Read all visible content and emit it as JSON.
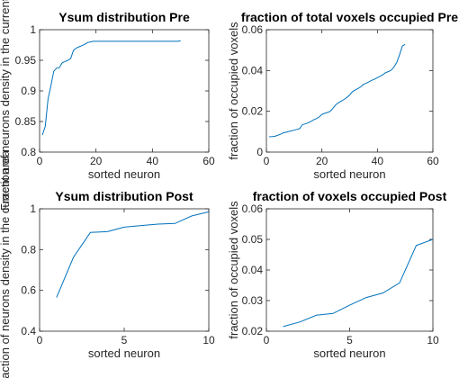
{
  "colors": {
    "line": "#0072bd",
    "axis": "#262626",
    "background": "#ffffff"
  },
  "chart_data": [
    {
      "type": "line",
      "title": "Ysum distribution Pre",
      "xlabel": "sorted neuron",
      "ylabel": "Fraction of neurons density in the current area",
      "xlim": [
        0,
        60
      ],
      "ylim": [
        0.8,
        1.0
      ],
      "xticks": [
        0,
        20,
        40,
        60
      ],
      "yticks": [
        0.8,
        0.85,
        0.9,
        0.95,
        1.0
      ],
      "xtick_labels": [
        "0",
        "20",
        "40",
        "60"
      ],
      "ytick_labels": [
        "0.8",
        "0.85",
        "0.9",
        "0.95",
        "1"
      ],
      "grid": false,
      "series": [
        {
          "x": [
            1,
            2,
            3,
            4,
            5,
            6,
            7,
            8,
            9,
            10,
            11,
            12,
            13,
            14,
            15,
            16,
            17,
            18,
            19,
            20,
            21,
            22,
            23,
            24,
            25,
            26,
            27,
            28,
            29,
            30,
            31,
            32,
            33,
            34,
            35,
            36,
            37,
            38,
            39,
            40,
            41,
            42,
            43,
            44,
            45,
            46,
            47,
            48,
            49,
            50
          ],
          "values": [
            0.828,
            0.842,
            0.887,
            0.908,
            0.932,
            0.937,
            0.938,
            0.946,
            0.948,
            0.95,
            0.953,
            0.966,
            0.97,
            0.972,
            0.974,
            0.976,
            0.979,
            0.98,
            0.981,
            0.981,
            0.981,
            0.981,
            0.981,
            0.981,
            0.981,
            0.981,
            0.981,
            0.981,
            0.981,
            0.981,
            0.981,
            0.981,
            0.981,
            0.981,
            0.981,
            0.981,
            0.981,
            0.981,
            0.981,
            0.981,
            0.981,
            0.981,
            0.981,
            0.981,
            0.981,
            0.981,
            0.981,
            0.981,
            0.981,
            0.982
          ]
        }
      ]
    },
    {
      "type": "line",
      "title": "fraction of total voxels occupied Pre",
      "xlabel": "sorted neuron",
      "ylabel": "fraction of occupied voxels",
      "xlim": [
        0,
        60
      ],
      "ylim": [
        0,
        0.06
      ],
      "xticks": [
        0,
        20,
        40,
        60
      ],
      "yticks": [
        0,
        0.02,
        0.04,
        0.06
      ],
      "xtick_labels": [
        "0",
        "20",
        "40",
        "60"
      ],
      "ytick_labels": [
        "0",
        "0.02",
        "0.04",
        "0.06"
      ],
      "grid": false,
      "series": [
        {
          "x": [
            1,
            2,
            3,
            4,
            5,
            6,
            7,
            8,
            9,
            10,
            11,
            12,
            13,
            14,
            15,
            16,
            17,
            18,
            19,
            20,
            21,
            22,
            23,
            24,
            25,
            26,
            27,
            28,
            29,
            30,
            31,
            32,
            33,
            34,
            35,
            36,
            37,
            38,
            39,
            40,
            41,
            42,
            43,
            44,
            45,
            46,
            47,
            48,
            49,
            50
          ],
          "values": [
            0.0075,
            0.0076,
            0.0077,
            0.0082,
            0.0087,
            0.0094,
            0.0097,
            0.0101,
            0.0104,
            0.0107,
            0.0111,
            0.0115,
            0.0135,
            0.0138,
            0.0143,
            0.015,
            0.0158,
            0.0164,
            0.0172,
            0.0185,
            0.019,
            0.0194,
            0.02,
            0.0215,
            0.0232,
            0.0242,
            0.025,
            0.0258,
            0.0268,
            0.028,
            0.0296,
            0.0305,
            0.0312,
            0.032,
            0.0332,
            0.0338,
            0.0345,
            0.0352,
            0.0358,
            0.0365,
            0.0372,
            0.038,
            0.039,
            0.0395,
            0.0402,
            0.0418,
            0.044,
            0.0478,
            0.052,
            0.0528
          ]
        }
      ]
    },
    {
      "type": "line",
      "title": "Ysum distribution Post",
      "xlabel": "sorted neuron",
      "ylabel": "Fraction of neurons density in the current area",
      "xlim": [
        0,
        10
      ],
      "ylim": [
        0.4,
        1.0
      ],
      "xticks": [
        0,
        5,
        10
      ],
      "yticks": [
        0.4,
        0.6,
        0.8,
        1.0
      ],
      "xtick_labels": [
        "0",
        "5",
        "10"
      ],
      "ytick_labels": [
        "0.4",
        "0.6",
        "0.8",
        "1"
      ],
      "grid": false,
      "series": [
        {
          "x": [
            1,
            2,
            3,
            4,
            5,
            6,
            7,
            8,
            9,
            10
          ],
          "values": [
            0.565,
            0.762,
            0.884,
            0.888,
            0.91,
            0.918,
            0.925,
            0.928,
            0.965,
            0.985
          ]
        }
      ]
    },
    {
      "type": "line",
      "title": "fraction of voxels occupied Post",
      "xlabel": "sorted neuron",
      "ylabel": "fraction of occupied voxels",
      "xlim": [
        0,
        10
      ],
      "ylim": [
        0.02,
        0.06
      ],
      "xticks": [
        0,
        5,
        10
      ],
      "yticks": [
        0.02,
        0.03,
        0.04,
        0.05,
        0.06
      ],
      "xtick_labels": [
        "0",
        "5",
        "10"
      ],
      "ytick_labels": [
        "0.02",
        "0.03",
        "0.04",
        "0.05",
        "0.06"
      ],
      "grid": false,
      "series": [
        {
          "x": [
            1,
            2,
            3,
            4,
            5,
            6,
            7,
            8,
            9,
            10
          ],
          "values": [
            0.0215,
            0.023,
            0.0252,
            0.0258,
            0.0285,
            0.031,
            0.0325,
            0.0358,
            0.048,
            0.05
          ]
        }
      ]
    }
  ]
}
